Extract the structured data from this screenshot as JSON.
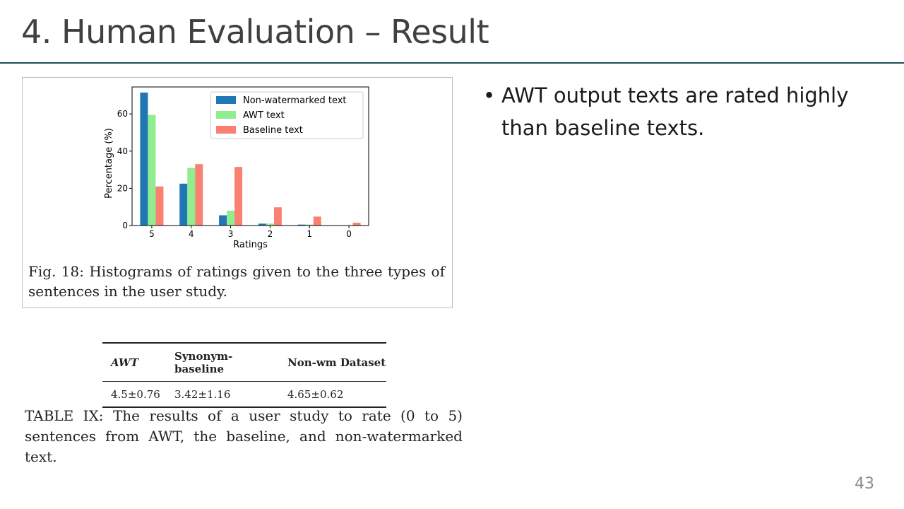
{
  "slide": {
    "title": "4. Human Evaluation – Result",
    "page_number": "43"
  },
  "bullets": [
    "AWT output texts are rated highly than baseline texts."
  ],
  "figure": {
    "caption": "Fig. 18: Histograms of ratings given to the three types of sentences in the user study."
  },
  "chart_data": {
    "type": "bar",
    "categories": [
      "5",
      "4",
      "3",
      "2",
      "1",
      "0"
    ],
    "series": [
      {
        "name": "Non-watermarked text",
        "values": [
          71.5,
          22.5,
          5.5,
          1.0,
          0.5,
          0.0
        ],
        "color": "#1f77b4"
      },
      {
        "name": "AWT text",
        "values": [
          59.5,
          31.0,
          8.0,
          1.0,
          0.5,
          0.0
        ],
        "color": "#90ee90"
      },
      {
        "name": "Baseline text",
        "values": [
          21.0,
          33.0,
          31.5,
          9.8,
          4.8,
          1.5
        ],
        "color": "#fa8072"
      }
    ],
    "xlabel": "Ratings",
    "ylabel": "Percentage (%)",
    "yticks": [
      0,
      20,
      40,
      60
    ],
    "ylim": [
      0,
      74.5
    ],
    "legend": "top-right",
    "grid": false
  },
  "table": {
    "headers": [
      "AWT",
      "Synonym-baseline",
      "Non-wm Dataset"
    ],
    "rows": [
      [
        "4.5±0.76",
        "3.42±1.16",
        "4.65±0.62"
      ]
    ],
    "caption": "TABLE IX: The results of a user study to rate (0 to 5) sentences from AWT, the baseline, and non-watermarked text."
  }
}
